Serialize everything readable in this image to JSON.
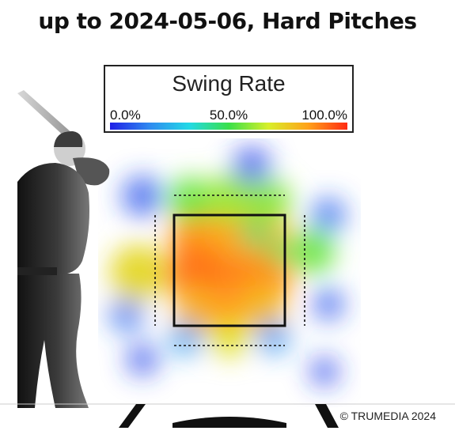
{
  "title": "up to 2024-05-06, Hard Pitches",
  "legend": {
    "title": "Swing Rate",
    "tick_low": "0.0%",
    "tick_mid": "50.0%",
    "tick_high": "100.0%",
    "colormap": [
      "#1f1fe6",
      "#2f8af0",
      "#22d9e6",
      "#39e04a",
      "#d8ef2a",
      "#ffa21a",
      "#ff2a12"
    ]
  },
  "copyright": "© TRUMEDIA 2024",
  "chart_data": {
    "type": "heatmap",
    "metric": "Swing Rate",
    "value_range": [
      0,
      100
    ],
    "unit": "%",
    "blobs": [
      {
        "region": "zone-center",
        "value": 88
      },
      {
        "region": "zone-upper-left",
        "value": 85
      },
      {
        "region": "zone-upper-middle",
        "value": 82
      },
      {
        "region": "zone-upper-right",
        "value": 80
      },
      {
        "region": "zone-middle-left",
        "value": 90
      },
      {
        "region": "zone-middle-right",
        "value": 86
      },
      {
        "region": "zone-lower-left",
        "value": 80
      },
      {
        "region": "zone-lower-middle",
        "value": 84
      },
      {
        "region": "zone-lower-right",
        "value": 78
      },
      {
        "region": "inner-upper-right",
        "value": 45
      },
      {
        "region": "inner-right",
        "value": 48
      },
      {
        "region": "left-of-zone",
        "value": 72
      },
      {
        "region": "above-zone-left",
        "value": 55
      },
      {
        "region": "above-zone-middle",
        "value": 60
      },
      {
        "region": "above-zone-right",
        "value": 58
      },
      {
        "region": "right-of-zone",
        "value": 55
      },
      {
        "region": "below-zone-left",
        "value": 20
      },
      {
        "region": "below-zone-middle",
        "value": 70
      },
      {
        "region": "below-zone-right",
        "value": 18
      },
      {
        "region": "far-left-high",
        "value": 8
      },
      {
        "region": "far-left-low",
        "value": 12
      },
      {
        "region": "far-right-high",
        "value": 10
      },
      {
        "region": "far-right-low",
        "value": 8
      },
      {
        "region": "far-high-right",
        "value": 5
      },
      {
        "region": "far-low-left",
        "value": 6
      },
      {
        "region": "far-low-right",
        "value": 5
      }
    ],
    "strike_zone": "solid",
    "shadow_zone": "dashed",
    "batter_side": "left"
  }
}
